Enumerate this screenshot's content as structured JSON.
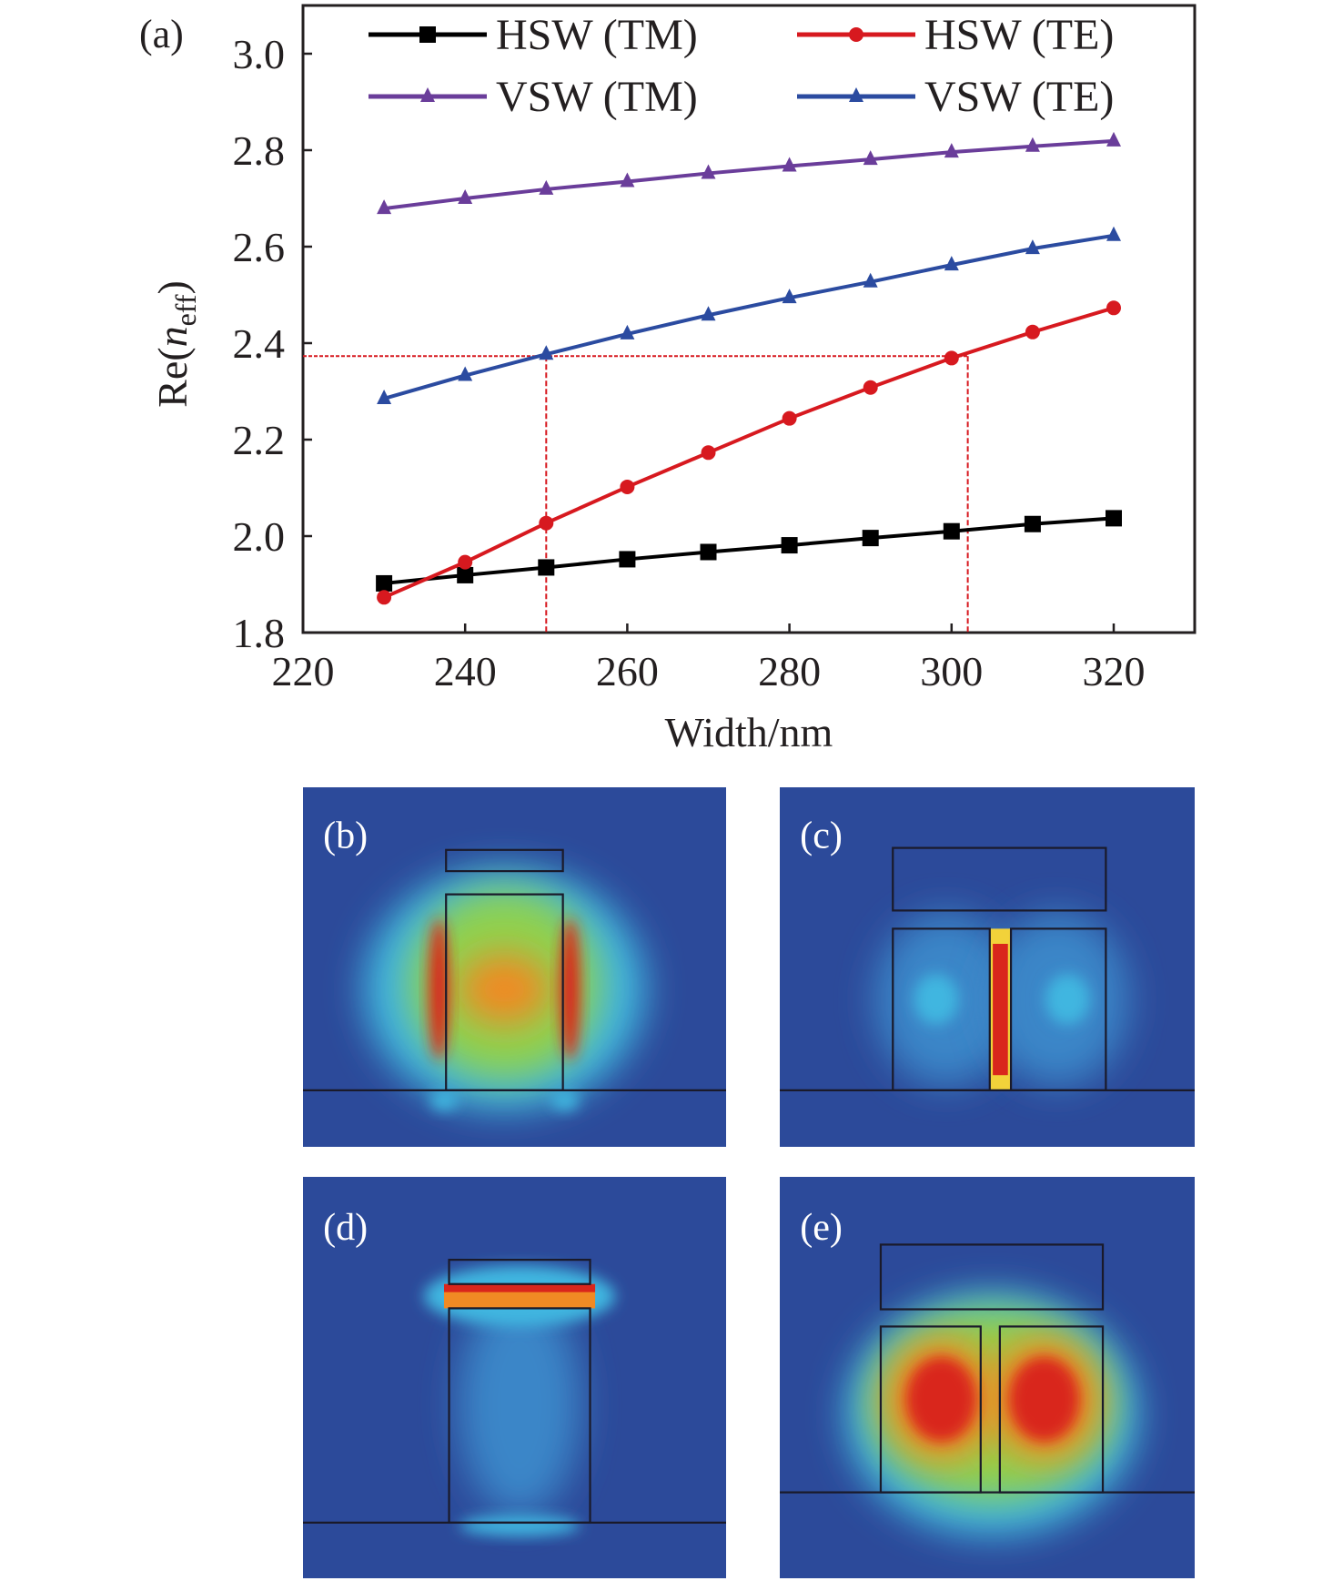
{
  "panel_labels": {
    "a": "(a)",
    "b": "(b)",
    "c": "(c)",
    "d": "(d)",
    "e": "(e)"
  },
  "chart_data": {
    "type": "line",
    "xlabel": "Width/nm",
    "ylabel_main": "Re(",
    "ylabel_italic": "n",
    "ylabel_sub": "eff",
    "ylabel_close": ")",
    "xlim": [
      220,
      330
    ],
    "ylim": [
      1.8,
      3.1
    ],
    "xticks": [
      220,
      240,
      260,
      280,
      300,
      320
    ],
    "yticks": [
      "1.8",
      "2.0",
      "2.2",
      "2.4",
      "2.6",
      "2.8",
      "3.0"
    ],
    "grid": false,
    "legend_position": "top",
    "x": [
      230,
      240,
      250,
      260,
      270,
      280,
      290,
      300,
      310,
      320
    ],
    "series": [
      {
        "name": "HSW (TM)",
        "color": "#000000",
        "marker": "square",
        "values": [
          1.902,
          1.919,
          1.935,
          1.952,
          1.967,
          1.981,
          1.996,
          2.01,
          2.025,
          2.037
        ]
      },
      {
        "name": "HSW (TE)",
        "color": "#d7191f",
        "marker": "circle",
        "values": [
          1.873,
          1.946,
          2.027,
          2.102,
          2.173,
          2.244,
          2.308,
          2.369,
          2.423,
          2.473
        ]
      },
      {
        "name": "VSW (TM)",
        "color": "#6a3d9a",
        "marker": "triangle",
        "values": [
          2.679,
          2.7,
          2.719,
          2.735,
          2.752,
          2.767,
          2.781,
          2.796,
          2.808,
          2.819
        ]
      },
      {
        "name": "VSW (TE)",
        "color": "#2b4ba0",
        "marker": "triangle",
        "values": [
          2.285,
          2.333,
          2.377,
          2.419,
          2.458,
          2.494,
          2.527,
          2.562,
          2.596,
          2.623
        ]
      }
    ],
    "reference_lines": {
      "color": "#d7191f",
      "horizontal_y": 2.373,
      "vertical_x": [
        250,
        302
      ]
    }
  },
  "field_colors": {
    "background": "#2c4a9a",
    "cyan": "#3fb6e0",
    "green": "#8fd14f",
    "yellow": "#f2d23a",
    "orange": "#f08a24",
    "red": "#d9261c"
  }
}
